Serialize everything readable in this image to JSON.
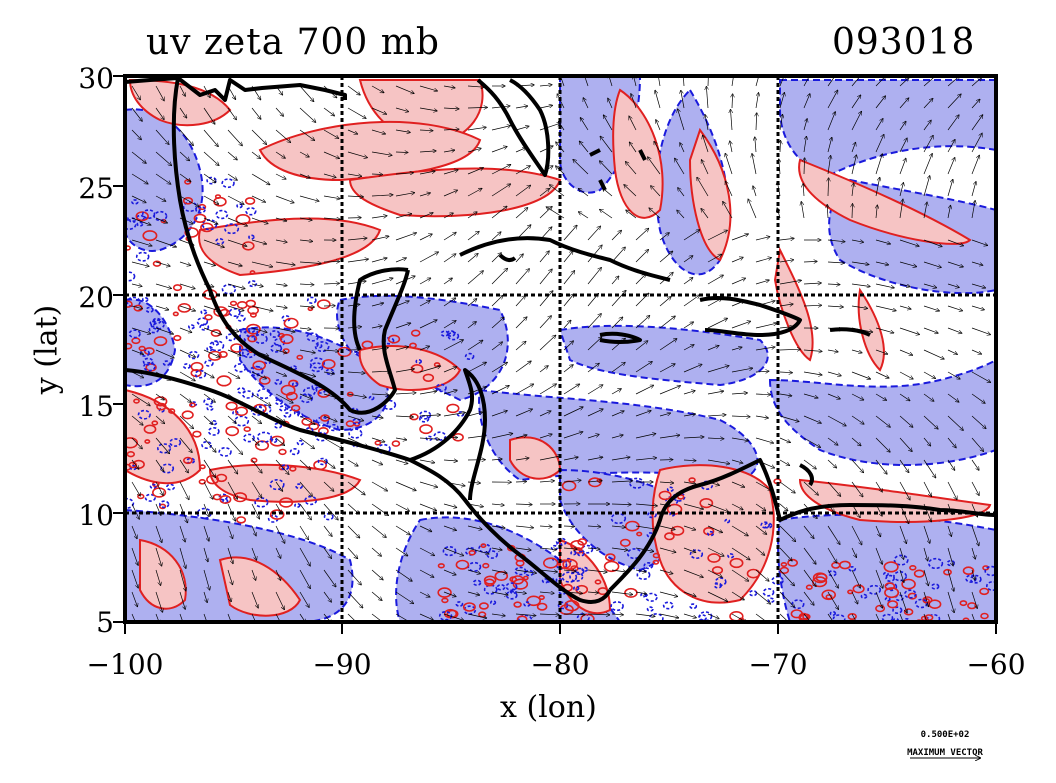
{
  "title": {
    "left": "uv zeta 700 mb",
    "right": "093018"
  },
  "axes": {
    "xlabel": "x (lon)",
    "ylabel": "y (lat)",
    "x_ticks": [
      "−100",
      "−90",
      "−80",
      "−70",
      "−60"
    ],
    "y_ticks": [
      "30",
      "25",
      "20",
      "15",
      "10",
      "5"
    ],
    "x_range": [
      -100,
      -60
    ],
    "y_range": [
      5,
      30
    ],
    "grid": true
  },
  "reference_vector": {
    "value": "0.500E+02",
    "label": "MAXIMUM VECTOR"
  },
  "colors": {
    "positive_fill": "#f6c4c4",
    "positive_contour": "#e02020",
    "negative_fill": "#aeb0f0",
    "negative_contour": "#1a1adc",
    "coastline": "#000000"
  },
  "icons": [
    "vector-arrow-icon"
  ]
}
